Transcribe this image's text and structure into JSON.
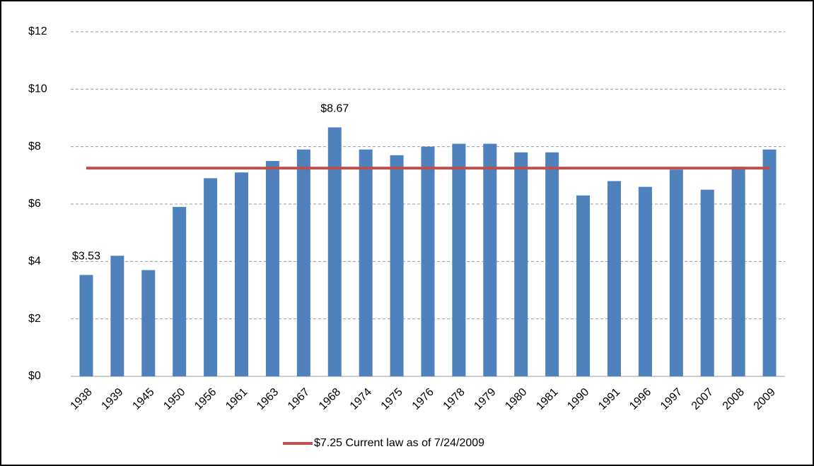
{
  "chart_data": {
    "type": "bar",
    "categories": [
      "1938",
      "1939",
      "1945",
      "1950",
      "1956",
      "1961",
      "1963",
      "1967",
      "1968",
      "1974",
      "1975",
      "1976",
      "1978",
      "1979",
      "1980",
      "1981",
      "1990",
      "1991",
      "1996",
      "1997",
      "2007",
      "2008",
      "2009"
    ],
    "series": [
      {
        "type": "bar",
        "color": "#4f81bd",
        "values": [
          3.53,
          4.2,
          3.7,
          5.9,
          6.9,
          7.1,
          7.5,
          7.9,
          8.67,
          7.9,
          7.7,
          8.0,
          8.1,
          8.1,
          7.8,
          7.8,
          6.3,
          6.8,
          6.6,
          7.2,
          6.5,
          7.3,
          7.9
        ],
        "value_labels": [
          "$3.53",
          null,
          null,
          null,
          null,
          null,
          null,
          null,
          "$8.67",
          null,
          null,
          null,
          null,
          null,
          null,
          null,
          null,
          null,
          null,
          null,
          null,
          null,
          null
        ]
      },
      {
        "type": "line",
        "name": "$7.25 Current law as of 7/24/2009",
        "color": "#c0504d",
        "values": [
          7.25,
          7.25,
          7.25,
          7.25,
          7.25,
          7.25,
          7.25,
          7.25,
          7.25,
          7.25,
          7.25,
          7.25,
          7.25,
          7.25,
          7.25,
          7.25,
          7.25,
          7.25,
          7.25,
          7.25,
          7.25,
          7.25,
          7.25
        ]
      }
    ],
    "ylim": [
      0,
      12
    ],
    "yticks": [
      {
        "value": 0,
        "label": "$0"
      },
      {
        "value": 2,
        "label": "$2"
      },
      {
        "value": 4,
        "label": "$4"
      },
      {
        "value": 6,
        "label": "$6"
      },
      {
        "value": 8,
        "label": "$8"
      },
      {
        "value": 10,
        "label": "$10"
      },
      {
        "value": 12,
        "label": "$12"
      }
    ],
    "grid": true,
    "legend": "bottom"
  }
}
